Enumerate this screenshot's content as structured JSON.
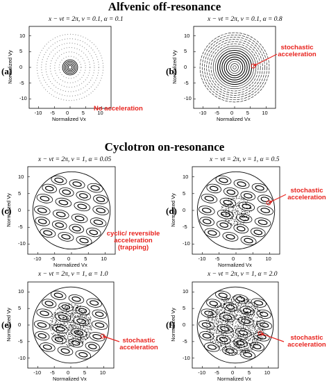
{
  "section_titles": {
    "top": "Alfvenic off-resonance",
    "bottom": "Cyclotron on-resonance"
  },
  "axis": {
    "xlabel": "Normalized Vx",
    "ylabel": "Normalized Vy",
    "ticks": [
      "-10",
      "-5",
      "0",
      "5",
      "10"
    ]
  },
  "panels": [
    {
      "label": "(a)",
      "title": "x − νt = 2π, ν = 0.1, α = 0.1",
      "annotation": "No acceleration",
      "style": "a"
    },
    {
      "label": "(b)",
      "title": "x − νt = 2π, ν = 0.1, α = 0.8",
      "annotation": "stochastic acceleration",
      "style": "b"
    },
    {
      "label": "(c)",
      "title": "x − νt = 2π, ν = 1, α = 0.05",
      "annotation": "cyclic/ reversible acceleration (trapping)",
      "style": "c"
    },
    {
      "label": "(d)",
      "title": "x − νt = 2π, ν = 1, α = 0.5",
      "annotation": "stochastic acceleration",
      "style": "d"
    },
    {
      "label": "(e)",
      "title": "x − νt = 2π, ν = 1, α = 1.0",
      "annotation": "stochastic acceleration",
      "style": "e"
    },
    {
      "label": "(f)",
      "title": "x − νt = 2π, ν = 1, α = 2.0",
      "annotation": "stochastic acceleration",
      "style": "f"
    }
  ],
  "colors": {
    "annotation": "#e8231e",
    "trajectory": "#000000"
  }
}
